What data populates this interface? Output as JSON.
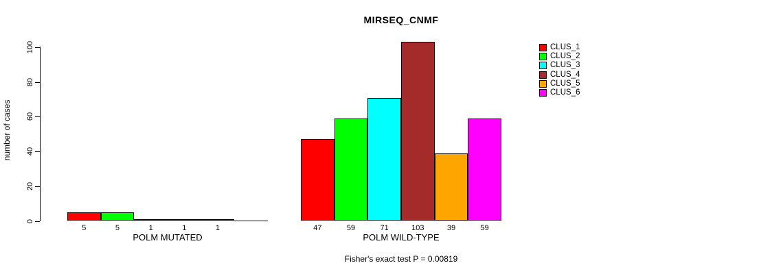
{
  "chart_data": {
    "type": "bar",
    "title": "MIRSEQ_CNMF",
    "ylabel": "number of cases",
    "xlabel": "",
    "ylim": [
      0,
      100
    ],
    "y_ticks": [
      0,
      20,
      40,
      60,
      80,
      100
    ],
    "grid": false,
    "legend_position": "right",
    "series_names": [
      "CLUS_1",
      "CLUS_2",
      "CLUS_3",
      "CLUS_4",
      "CLUS_5",
      "CLUS_6"
    ],
    "colors": [
      "#FF0000",
      "#00FF00",
      "#00FFFF",
      "#A52A2A",
      "#FFA500",
      "#FF00FF"
    ],
    "groups": [
      {
        "label": "POLM MUTATED",
        "values": [
          5,
          5,
          1,
          1,
          1,
          0
        ],
        "bar_labels": [
          "5",
          "5",
          "1",
          "1",
          "1",
          ""
        ]
      },
      {
        "label": "POLM WILD-TYPE",
        "values": [
          47,
          59,
          71,
          103,
          39,
          59
        ],
        "bar_labels": [
          "47",
          "59",
          "71",
          "103",
          "39",
          "59"
        ]
      }
    ],
    "annotation": "Fisher's exact test P = 0.00819"
  }
}
